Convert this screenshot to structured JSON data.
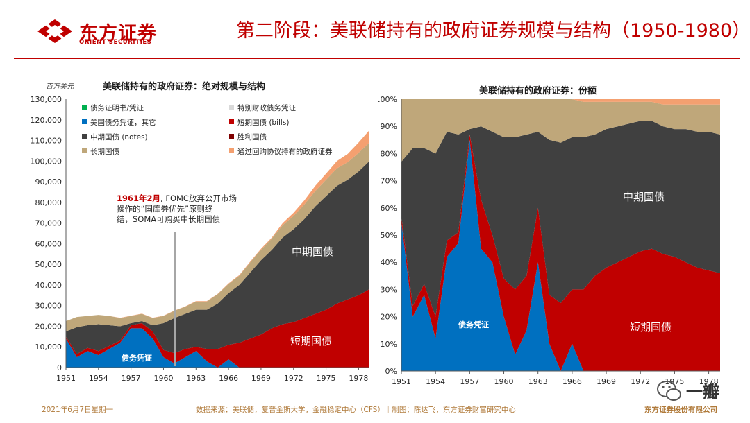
{
  "header": {
    "logo_cn": "东方证券",
    "logo_en": "ORIENT SECURITIES",
    "title": "第二阶段：美联储持有的政府证券规模与结构（1950-1980）"
  },
  "footer": {
    "date": "2021年6月7日星期一",
    "source": "数据来源：美联储，复普金斯大学，金融稳定中心（CFS）｜制图：陈达飞，东方证券财富研究中心",
    "company": "东方证券股份有限公司",
    "watermark": "一瓣"
  },
  "colors": {
    "cert": "#00b050",
    "special": "#d9d9d9",
    "notes_other": "#0070c0",
    "bills": "#c00000",
    "notes": "#404040",
    "victory": "#7f0000",
    "bonds": "#bfa77a",
    "repo": "#f4a070"
  },
  "chart_data": [
    {
      "type": "area",
      "title": "美联储持有的政府证券：绝对规模与结构",
      "unit_label": "百万美元",
      "ylim": [
        0,
        130000
      ],
      "y_ticks": [
        "0",
        "10,000",
        "20,000",
        "30,000",
        "40,000",
        "50,000",
        "60,000",
        "70,000",
        "80,000",
        "90,000",
        "100,000",
        "110,000",
        "120,000",
        "130,000"
      ],
      "x_ticks": [
        "1951",
        "1954",
        "1957",
        "1960",
        "1963",
        "1966",
        "1969",
        "1972",
        "1975",
        "1978"
      ],
      "legend": [
        {
          "label": "债务证明书/凭证",
          "color_key": "cert"
        },
        {
          "label": "特别财政债务凭证",
          "color_key": "special"
        },
        {
          "label": "美国债务凭证，其它",
          "color_key": "notes_other"
        },
        {
          "label": "短期国债 (bills)",
          "color_key": "bills"
        },
        {
          "label": "中期国债 (notes)",
          "color_key": "notes"
        },
        {
          "label": "胜利国债",
          "color_key": "victory"
        },
        {
          "label": "长期国债",
          "color_key": "bonds"
        },
        {
          "label": "通过回购协议持有的政府证券",
          "color_key": "repo"
        }
      ],
      "x": [
        1951,
        1952,
        1953,
        1954,
        1955,
        1956,
        1957,
        1958,
        1959,
        1960,
        1961,
        1962,
        1963,
        1964,
        1965,
        1966,
        1967,
        1968,
        1969,
        1970,
        1971,
        1972,
        1973,
        1974,
        1975,
        1976,
        1977,
        1978,
        1979
      ],
      "series": [
        {
          "name": "债务凭证",
          "key": "notes_other",
          "values": [
            14000,
            5000,
            8000,
            6000,
            9000,
            12000,
            19000,
            19000,
            14000,
            5000,
            2000,
            5000,
            8000,
            3000,
            0,
            4000,
            0,
            0,
            0,
            0,
            0,
            0,
            0,
            0,
            0,
            0,
            0,
            0,
            0
          ]
        },
        {
          "name": "短期国债",
          "key": "bills",
          "values": [
            1000,
            1500,
            1500,
            2000,
            1500,
            1000,
            1500,
            2500,
            3500,
            3500,
            5000,
            4000,
            2000,
            6000,
            9000,
            7000,
            12000,
            14000,
            16000,
            19000,
            21000,
            22000,
            24000,
            26000,
            28000,
            31000,
            33000,
            35000,
            38000
          ]
        },
        {
          "name": "中期国债",
          "key": "notes",
          "values": [
            2500,
            13000,
            11000,
            13000,
            10000,
            7000,
            1000,
            1000,
            3000,
            13000,
            17000,
            17000,
            18000,
            19000,
            22000,
            25000,
            28000,
            32000,
            36000,
            38000,
            42000,
            45000,
            48000,
            52000,
            55000,
            57000,
            58000,
            60000,
            62000
          ]
        },
        {
          "name": "长期国债",
          "key": "bonds",
          "values": [
            5000,
            5000,
            4500,
            4500,
            4500,
            4000,
            3500,
            3500,
            3500,
            3500,
            3500,
            3500,
            4000,
            4000,
            4500,
            4500,
            4500,
            5000,
            5000,
            5500,
            6000,
            6500,
            7000,
            7500,
            8000,
            8500,
            8500,
            9000,
            9000
          ]
        },
        {
          "name": "回购",
          "key": "repo",
          "values": [
            0,
            0,
            0,
            0,
            0,
            100,
            100,
            100,
            100,
            100,
            100,
            100,
            200,
            200,
            200,
            200,
            300,
            300,
            500,
            500,
            1000,
            1500,
            2000,
            2500,
            3000,
            3500,
            4000,
            5000,
            6000
          ]
        }
      ],
      "annotation": {
        "year": 1961,
        "highlight": "1961年2月",
        "lines": [
          ", FOMC放弃公开市场",
          "操作的“国库券优先”原则终",
          "结，SOMA可购买中长期国债"
        ]
      },
      "area_labels": {
        "notes": "中期国债",
        "bills": "短期国债",
        "cert": "债务凭证"
      }
    },
    {
      "type": "area",
      "title": "美联储持有的政府证券：份额",
      "ylim": [
        0,
        100
      ],
      "y_ticks": [
        "0%",
        "10%",
        "20%",
        "30%",
        "40%",
        "50%",
        "60%",
        "70%",
        "80%",
        "90%",
        "100%"
      ],
      "x_ticks": [
        "1951",
        "1954",
        "1957",
        "1960",
        "1963",
        "1966",
        "1969",
        "1972",
        "1975",
        "1978"
      ],
      "x": [
        1951,
        1952,
        1953,
        1954,
        1955,
        1956,
        1957,
        1958,
        1959,
        1960,
        1961,
        1962,
        1963,
        1964,
        1965,
        1966,
        1967,
        1968,
        1969,
        1970,
        1971,
        1972,
        1973,
        1974,
        1975,
        1976,
        1977,
        1978,
        1979
      ],
      "series": [
        {
          "name": "债务凭证",
          "key": "notes_other",
          "values": [
            55,
            20,
            28,
            12,
            42,
            47,
            85,
            45,
            40,
            20,
            6,
            15,
            40,
            10,
            0,
            10,
            0,
            0,
            0,
            0,
            0,
            0,
            0,
            0,
            0,
            0,
            0,
            0,
            0
          ]
        },
        {
          "name": "短期国债",
          "key": "bills",
          "values": [
            2,
            4,
            4,
            8,
            6,
            4,
            2,
            18,
            10,
            14,
            24,
            20,
            20,
            18,
            25,
            20,
            30,
            35,
            38,
            40,
            42,
            44,
            45,
            43,
            42,
            40,
            38,
            37,
            36
          ]
        },
        {
          "name": "中期国债",
          "key": "notes",
          "values": [
            20,
            58,
            50,
            60,
            40,
            36,
            2,
            27,
            38,
            52,
            56,
            52,
            28,
            57,
            59,
            56,
            56,
            52,
            51,
            50,
            49,
            48,
            47,
            47,
            47,
            49,
            50,
            51,
            51
          ]
        },
        {
          "name": "长期国债",
          "key": "bonds",
          "values": [
            23,
            18,
            18,
            20,
            12,
            13,
            11,
            10,
            12,
            14,
            14,
            13,
            12,
            15,
            16,
            14,
            13,
            12,
            10,
            9,
            8,
            7,
            7,
            8,
            9,
            9,
            10,
            10,
            11
          ]
        },
        {
          "name": "回购",
          "key": "repo",
          "values": [
            0,
            0,
            0,
            0,
            0,
            0,
            0,
            0,
            0,
            0,
            0,
            0,
            0,
            0,
            0,
            0,
            1,
            1,
            1,
            1,
            1,
            1,
            1,
            2,
            2,
            2,
            2,
            2,
            2
          ]
        }
      ],
      "area_labels": {
        "notes": "中期国债",
        "bills": "短期国债",
        "cert": "债务凭证"
      }
    }
  ]
}
